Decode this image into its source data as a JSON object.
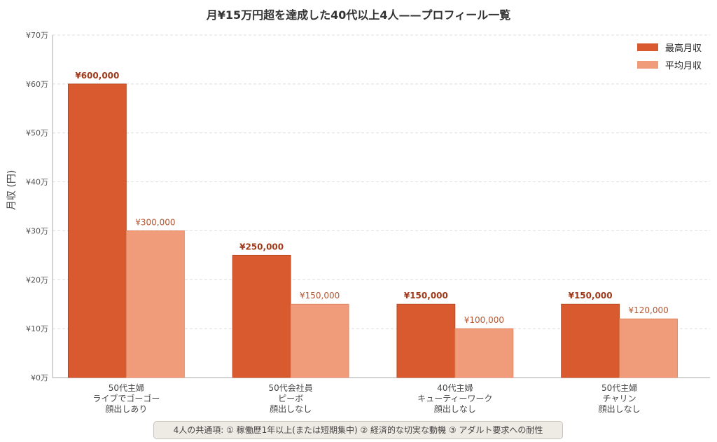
{
  "chart_data": {
    "type": "bar",
    "title": "月¥15万円超を達成した40代以上4人——プロフィール一覧",
    "ylabel": "月収 (円)",
    "ylim": [
      0,
      700000
    ],
    "yticks": [
      0,
      100000,
      200000,
      300000,
      400000,
      500000,
      600000,
      700000
    ],
    "ytick_labels": [
      "¥0万",
      "¥10万",
      "¥20万",
      "¥30万",
      "¥40万",
      "¥50万",
      "¥60万",
      "¥70万"
    ],
    "categories": [
      [
        "50代主婦",
        "ライブでゴーゴー",
        "顔出しあり"
      ],
      [
        "50代会社員",
        "ピーボ",
        "顔出しなし"
      ],
      [
        "40代主婦",
        "キューティーワーク",
        "顔出しなし"
      ],
      [
        "50代主婦",
        "チャリン",
        "顔出しなし"
      ]
    ],
    "series": [
      {
        "name": "最高月収",
        "color": "#d95a2f",
        "values": [
          600000,
          250000,
          150000,
          150000
        ],
        "labels": [
          "¥600,000",
          "¥250,000",
          "¥150,000",
          "¥150,000"
        ]
      },
      {
        "name": "平均月収",
        "color": "#f09c7b",
        "values": [
          300000,
          150000,
          100000,
          120000
        ],
        "labels": [
          "¥300,000",
          "¥150,000",
          "¥100,000",
          "¥120,000"
        ]
      }
    ],
    "grid": true,
    "legend": "top-right"
  },
  "footnote": "4人の共通項: ① 稼働歴1年以上(または短期集中) ② 経済的な切実な動機 ③ アダルト要求への耐性"
}
